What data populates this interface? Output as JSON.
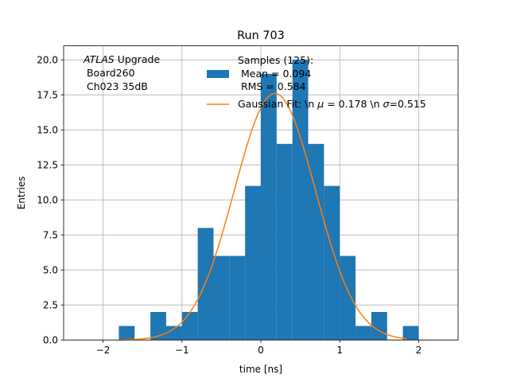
{
  "chart_data": {
    "type": "bar",
    "title": "Run 703",
    "xlabel": "time [ns]",
    "ylabel": "Entries",
    "xlim": [
      -2.5,
      2.5
    ],
    "ylim": [
      0,
      21
    ],
    "grid": true,
    "x_ticks": [
      -2,
      -1,
      0,
      1,
      2
    ],
    "x_tick_labels": [
      "−2",
      "−1",
      "0",
      "1",
      "2"
    ],
    "y_ticks": [
      0,
      2.5,
      5,
      7.5,
      10,
      12.5,
      15,
      17.5,
      20
    ],
    "y_tick_labels": [
      "0.0",
      "2.5",
      "5.0",
      "7.5",
      "10.0",
      "12.5",
      "15.0",
      "17.5",
      "20.0"
    ],
    "annotation": {
      "italic": "ATLAS",
      "line1_rest": " Upgrade",
      "line2": " Board260",
      "line3": " Ch023 35dB"
    },
    "legend": {
      "placement": "top-right",
      "samples_line1": "Samples (125):",
      "samples_line2": " Mean = 0.094",
      "samples_line3": " RMS = 0.584",
      "fit_label_pre": "Gaussian Fit: \\n ",
      "fit_mu_symbol": "μ",
      "fit_label_mid": " = 0.178 \\n ",
      "fit_sigma_symbol": "σ",
      "fit_label_post": "=0.515"
    },
    "histogram": {
      "bin_edges": [
        -2.0,
        -1.8,
        -1.6,
        -1.4,
        -1.2,
        -1.0,
        -0.8,
        -0.6,
        -0.4,
        -0.2,
        0.0,
        0.2,
        0.4,
        0.6,
        0.8,
        1.0,
        1.2,
        1.4,
        1.6,
        1.8,
        2.0
      ],
      "counts": [
        0,
        1,
        0,
        2,
        1,
        2,
        8,
        6,
        6,
        11,
        19,
        14,
        20,
        14,
        11,
        6,
        1,
        2,
        0,
        1
      ],
      "color": "#1f77b4"
    },
    "fit": {
      "amplitude": 17.6,
      "mu": 0.178,
      "sigma": 0.515,
      "x_range": [
        -1.8,
        1.85
      ],
      "color": "#ff7f0e"
    }
  }
}
